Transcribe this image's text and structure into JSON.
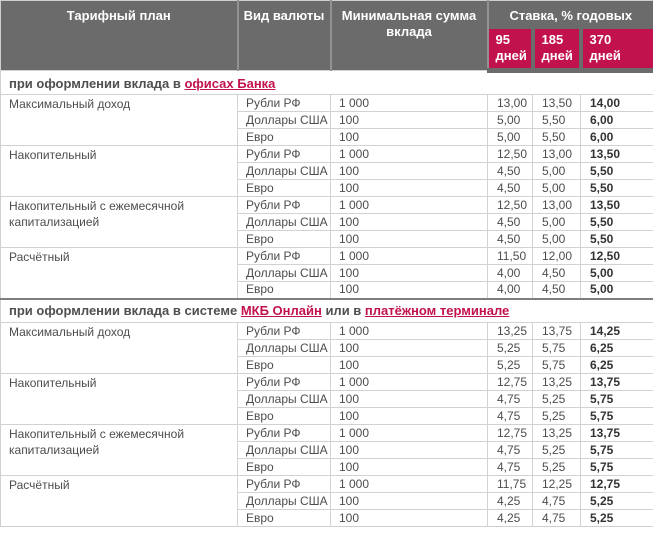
{
  "colors": {
    "accent": "#c2124e",
    "header_bg": "#6b6b6b",
    "body_text": "#4d4d4d"
  },
  "table": {
    "columns": {
      "plan": "Тарифный план",
      "currency": "Вид валюты",
      "min_sum": "Минимальная сумма вклада",
      "rate_group": "Ставка, % годовых"
    },
    "terms": [
      {
        "num": "95",
        "unit": "дней"
      },
      {
        "num": "185",
        "unit": "дней"
      },
      {
        "num": "370",
        "unit": "дней"
      }
    ],
    "sections": [
      {
        "title_parts": [
          {
            "text": "при оформлении вклада в ",
            "link": false
          },
          {
            "text": "офисах Банка",
            "link": true
          }
        ],
        "plans": [
          {
            "name": "Максимальный доход",
            "rows": [
              {
                "currency": "Рубли РФ",
                "min": "1 000",
                "rates": [
                  "13,00",
                  "13,50",
                  "14,00"
                ]
              },
              {
                "currency": "Доллары США",
                "min": "100",
                "rates": [
                  "5,00",
                  "5,50",
                  "6,00"
                ]
              },
              {
                "currency": "Евро",
                "min": "100",
                "rates": [
                  "5,00",
                  "5,50",
                  "6,00"
                ]
              }
            ]
          },
          {
            "name": "Накопительный",
            "rows": [
              {
                "currency": "Рубли РФ",
                "min": "1 000",
                "rates": [
                  "12,50",
                  "13,00",
                  "13,50"
                ]
              },
              {
                "currency": "Доллары США",
                "min": "100",
                "rates": [
                  "4,50",
                  "5,00",
                  "5,50"
                ]
              },
              {
                "currency": "Евро",
                "min": "100",
                "rates": [
                  "4,50",
                  "5,00",
                  "5,50"
                ]
              }
            ]
          },
          {
            "name": "Накопительный с ежемесячной капитализацией",
            "rows": [
              {
                "currency": "Рубли РФ",
                "min": "1 000",
                "rates": [
                  "12,50",
                  "13,00",
                  "13,50"
                ]
              },
              {
                "currency": "Доллары США",
                "min": "100",
                "rates": [
                  "4,50",
                  "5,00",
                  "5,50"
                ]
              },
              {
                "currency": "Евро",
                "min": "100",
                "rates": [
                  "4,50",
                  "5,00",
                  "5,50"
                ]
              }
            ]
          },
          {
            "name": "Расчётный",
            "rows": [
              {
                "currency": "Рубли РФ",
                "min": "1 000",
                "rates": [
                  "11,50",
                  "12,00",
                  "12,50"
                ]
              },
              {
                "currency": "Доллары США",
                "min": "100",
                "rates": [
                  "4,00",
                  "4,50",
                  "5,00"
                ]
              },
              {
                "currency": "Евро",
                "min": "100",
                "rates": [
                  "4,00",
                  "4,50",
                  "5,00"
                ]
              }
            ]
          }
        ]
      },
      {
        "title_parts": [
          {
            "text": "при оформлении вклада в системе ",
            "link": false
          },
          {
            "text": "МКБ Онлайн",
            "link": true
          },
          {
            "text": " или в ",
            "link": false
          },
          {
            "text": "платёжном терминале",
            "link": true
          }
        ],
        "plans": [
          {
            "name": "Максимальный доход",
            "rows": [
              {
                "currency": "Рубли РФ",
                "min": "1 000",
                "rates": [
                  "13,25",
                  "13,75",
                  "14,25"
                ]
              },
              {
                "currency": "Доллары США",
                "min": "100",
                "rates": [
                  "5,25",
                  "5,75",
                  "6,25"
                ]
              },
              {
                "currency": "Евро",
                "min": "100",
                "rates": [
                  "5,25",
                  "5,75",
                  "6,25"
                ]
              }
            ]
          },
          {
            "name": "Накопительный",
            "rows": [
              {
                "currency": "Рубли РФ",
                "min": "1 000",
                "rates": [
                  "12,75",
                  "13,25",
                  "13,75"
                ]
              },
              {
                "currency": "Доллары США",
                "min": "100",
                "rates": [
                  "4,75",
                  "5,25",
                  "5,75"
                ]
              },
              {
                "currency": "Евро",
                "min": "100",
                "rates": [
                  "4,75",
                  "5,25",
                  "5,75"
                ]
              }
            ]
          },
          {
            "name": "Накопительный с ежемесячной капитализацией",
            "rows": [
              {
                "currency": "Рубли РФ",
                "min": "1 000",
                "rates": [
                  "12,75",
                  "13,25",
                  "13,75"
                ]
              },
              {
                "currency": "Доллары США",
                "min": "100",
                "rates": [
                  "4,75",
                  "5,25",
                  "5,75"
                ]
              },
              {
                "currency": "Евро",
                "min": "100",
                "rates": [
                  "4,75",
                  "5,25",
                  "5,75"
                ]
              }
            ]
          },
          {
            "name": "Расчётный",
            "rows": [
              {
                "currency": "Рубли РФ",
                "min": "1 000",
                "rates": [
                  "11,75",
                  "12,25",
                  "12,75"
                ]
              },
              {
                "currency": "Доллары США",
                "min": "100",
                "rates": [
                  "4,25",
                  "4,75",
                  "5,25"
                ]
              },
              {
                "currency": "Евро",
                "min": "100",
                "rates": [
                  "4,25",
                  "4,75",
                  "5,25"
                ]
              }
            ]
          }
        ]
      }
    ]
  }
}
